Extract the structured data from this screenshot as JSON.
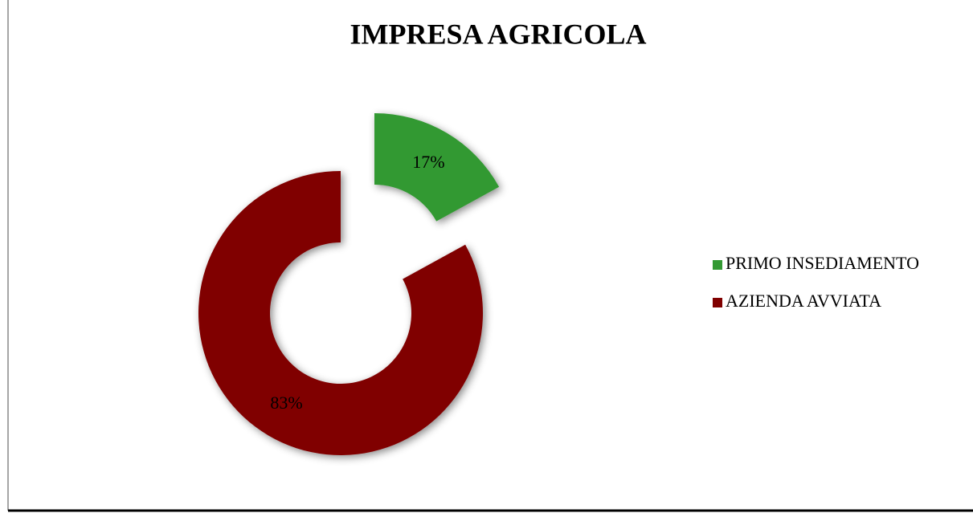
{
  "chart_data": {
    "type": "pie",
    "title": "IMPRESA AGRICOLA",
    "categories": [
      "PRIMO INSEDIAMENTO",
      "AZIENDA AVVIATA"
    ],
    "values": [
      17,
      83
    ],
    "value_labels": [
      "17%",
      "83%"
    ],
    "colors": [
      "#339933",
      "#800000"
    ],
    "legend": "right"
  }
}
